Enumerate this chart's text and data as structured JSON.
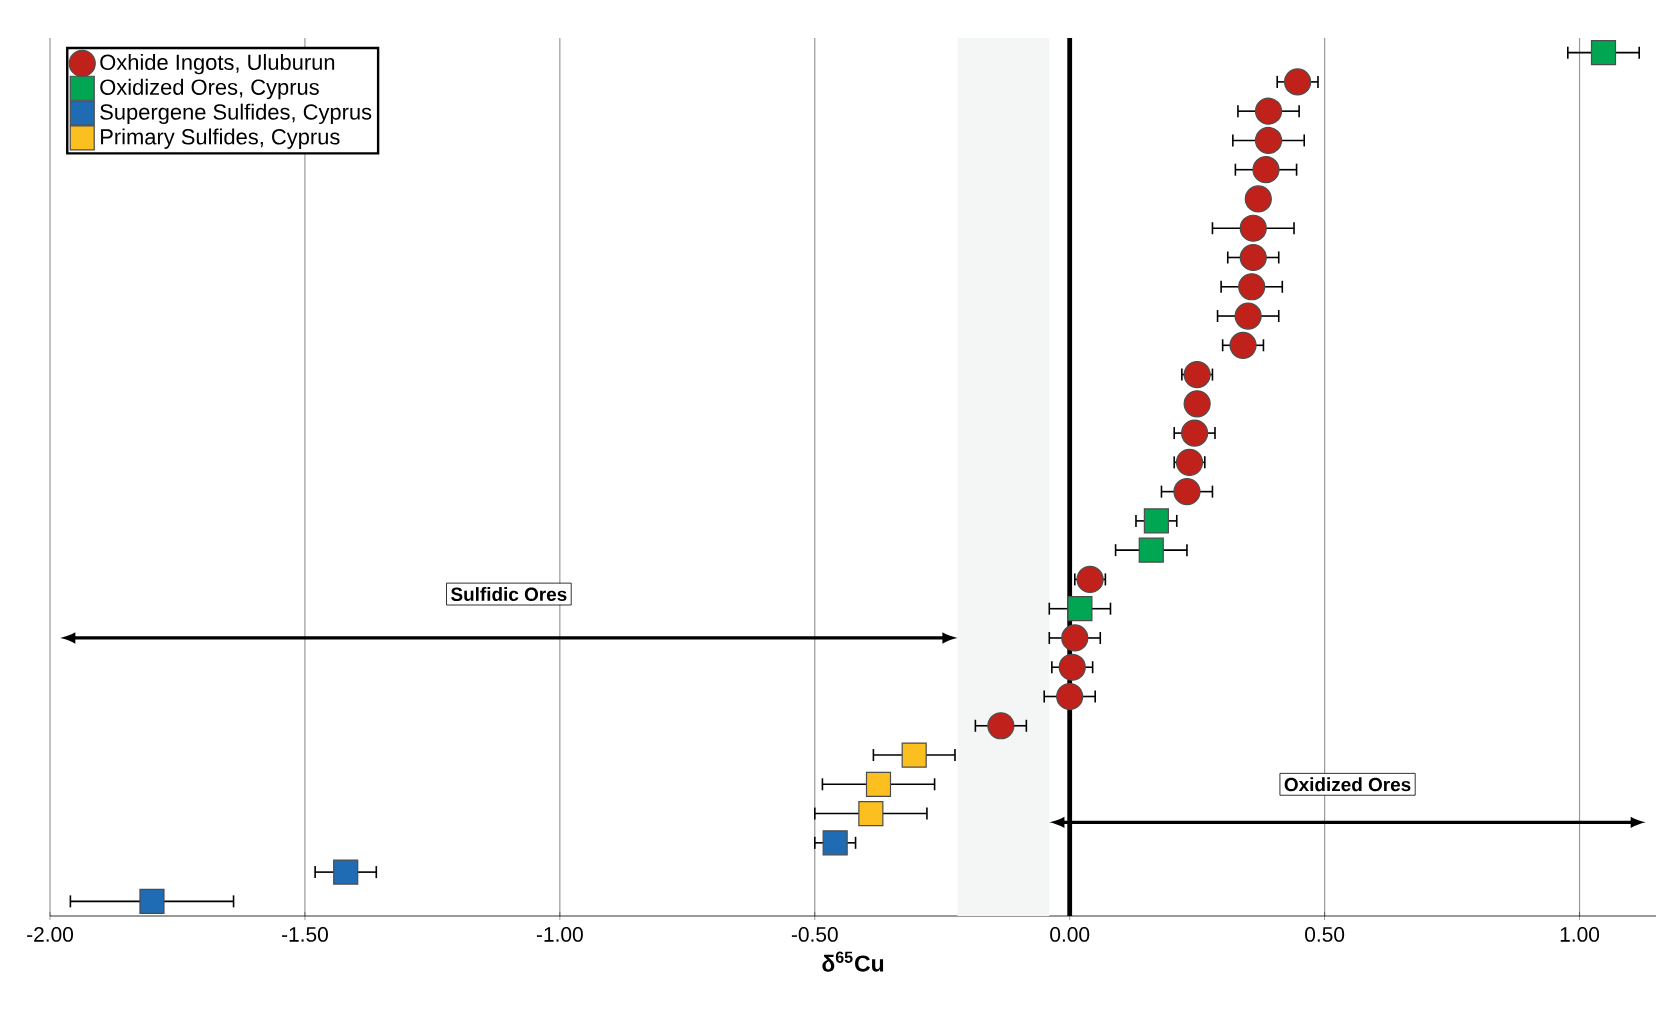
{
  "chart_data": {
    "type": "scatter",
    "orientation": "horizontal",
    "xlabel": "**δ$^{65}$Cu**",
    "categories": [
      null,
      null,
      null,
      null,
      null,
      null,
      null,
      null,
      null,
      null,
      null,
      null,
      null,
      null,
      null,
      null,
      null,
      null,
      null,
      null,
      null,
      null,
      null,
      null,
      null,
      null,
      null,
      null,
      null,
      null
    ],
    "series": [
      {
        "name": "Oxhide Ingots, Uluburun",
        "color": "#c0221b",
        "marker": "circle",
        "values": [
          null,
          0.447,
          0.39,
          0.39,
          0.385,
          0.37,
          0.36,
          0.36,
          0.357,
          0.35,
          0.34,
          0.25,
          0.25,
          0.245,
          0.235,
          0.23,
          null,
          null,
          0.04,
          null,
          0.01,
          0.005,
          0.0,
          -0.135,
          null,
          null,
          null,
          null,
          null,
          null
        ],
        "errors": [
          null,
          0.04,
          0.06,
          0.07,
          0.06,
          0.02,
          0.08,
          0.05,
          0.06,
          0.06,
          0.04,
          0.03,
          null,
          0.04,
          0.03,
          0.05,
          null,
          null,
          0.03,
          null,
          0.05,
          0.04,
          0.05,
          0.05,
          null,
          null,
          null,
          null,
          null,
          null
        ]
      },
      {
        "name": "Oxidized Ores, Cyprus",
        "color": "#00a651",
        "marker": "square",
        "values": [
          1.047,
          null,
          null,
          null,
          null,
          null,
          null,
          null,
          null,
          null,
          null,
          null,
          null,
          null,
          null,
          null,
          0.17,
          0.16,
          null,
          0.02,
          null,
          null,
          null,
          null,
          null,
          null,
          null,
          null,
          null,
          null
        ],
        "errors": [
          0.07,
          null,
          null,
          null,
          null,
          null,
          null,
          null,
          null,
          null,
          null,
          null,
          null,
          null,
          null,
          null,
          0.04,
          0.07,
          null,
          0.06,
          null,
          null,
          null,
          null,
          null,
          null,
          null,
          null,
          null,
          null
        ]
      },
      {
        "name": "Supergene Sulfides, Cyprus",
        "color": "#1f6cb4",
        "marker": "square",
        "values": [
          null,
          null,
          null,
          null,
          null,
          null,
          null,
          null,
          null,
          null,
          null,
          null,
          null,
          null,
          null,
          null,
          null,
          null,
          null,
          null,
          null,
          null,
          null,
          null,
          null,
          null,
          null,
          -0.46,
          -1.42,
          -1.8
        ],
        "errors": [
          null,
          null,
          null,
          null,
          null,
          null,
          null,
          null,
          null,
          null,
          null,
          null,
          null,
          null,
          null,
          null,
          null,
          null,
          null,
          null,
          null,
          null,
          null,
          null,
          null,
          null,
          null,
          0.04,
          0.06,
          0.16
        ]
      },
      {
        "name": "Primary Sulfides, Cyprus",
        "color": "#fbbf1f",
        "marker": "square",
        "values": [
          null,
          null,
          null,
          null,
          null,
          null,
          null,
          null,
          null,
          null,
          null,
          null,
          null,
          null,
          null,
          null,
          null,
          null,
          null,
          null,
          null,
          null,
          null,
          null,
          -0.305,
          -0.375,
          -0.39,
          null,
          null,
          null
        ],
        "errors": [
          null,
          null,
          null,
          null,
          null,
          null,
          null,
          null,
          null,
          null,
          null,
          null,
          null,
          null,
          null,
          null,
          null,
          null,
          null,
          null,
          null,
          null,
          null,
          null,
          0.08,
          0.11,
          0.11,
          null,
          null,
          null
        ]
      }
    ],
    "xlim": [
      -2.0,
      1.15
    ],
    "xticks": [
      {
        "value": -2.0,
        "label": "-2.00"
      },
      {
        "value": -1.5,
        "label": "-1.50"
      },
      {
        "value": -1.0,
        "label": "-1.00"
      },
      {
        "value": -0.5,
        "label": "-0.50"
      },
      {
        "value": 0.0,
        "label": "0.00"
      },
      {
        "value": 0.5,
        "label": "0.50"
      },
      {
        "value": 1.0,
        "label": "1.00"
      }
    ],
    "grid": "x",
    "legend": "top left",
    "ref_lines": [
      {
        "axis": "x",
        "value": 0.0,
        "color": "#000000"
      }
    ],
    "bands": [
      {
        "axis": "x",
        "from": -0.22,
        "to": -0.04,
        "color": "#f3f6f5"
      }
    ],
    "annotations": [
      "Sulfidic Ores",
      "Oxidized Ores"
    ]
  }
}
